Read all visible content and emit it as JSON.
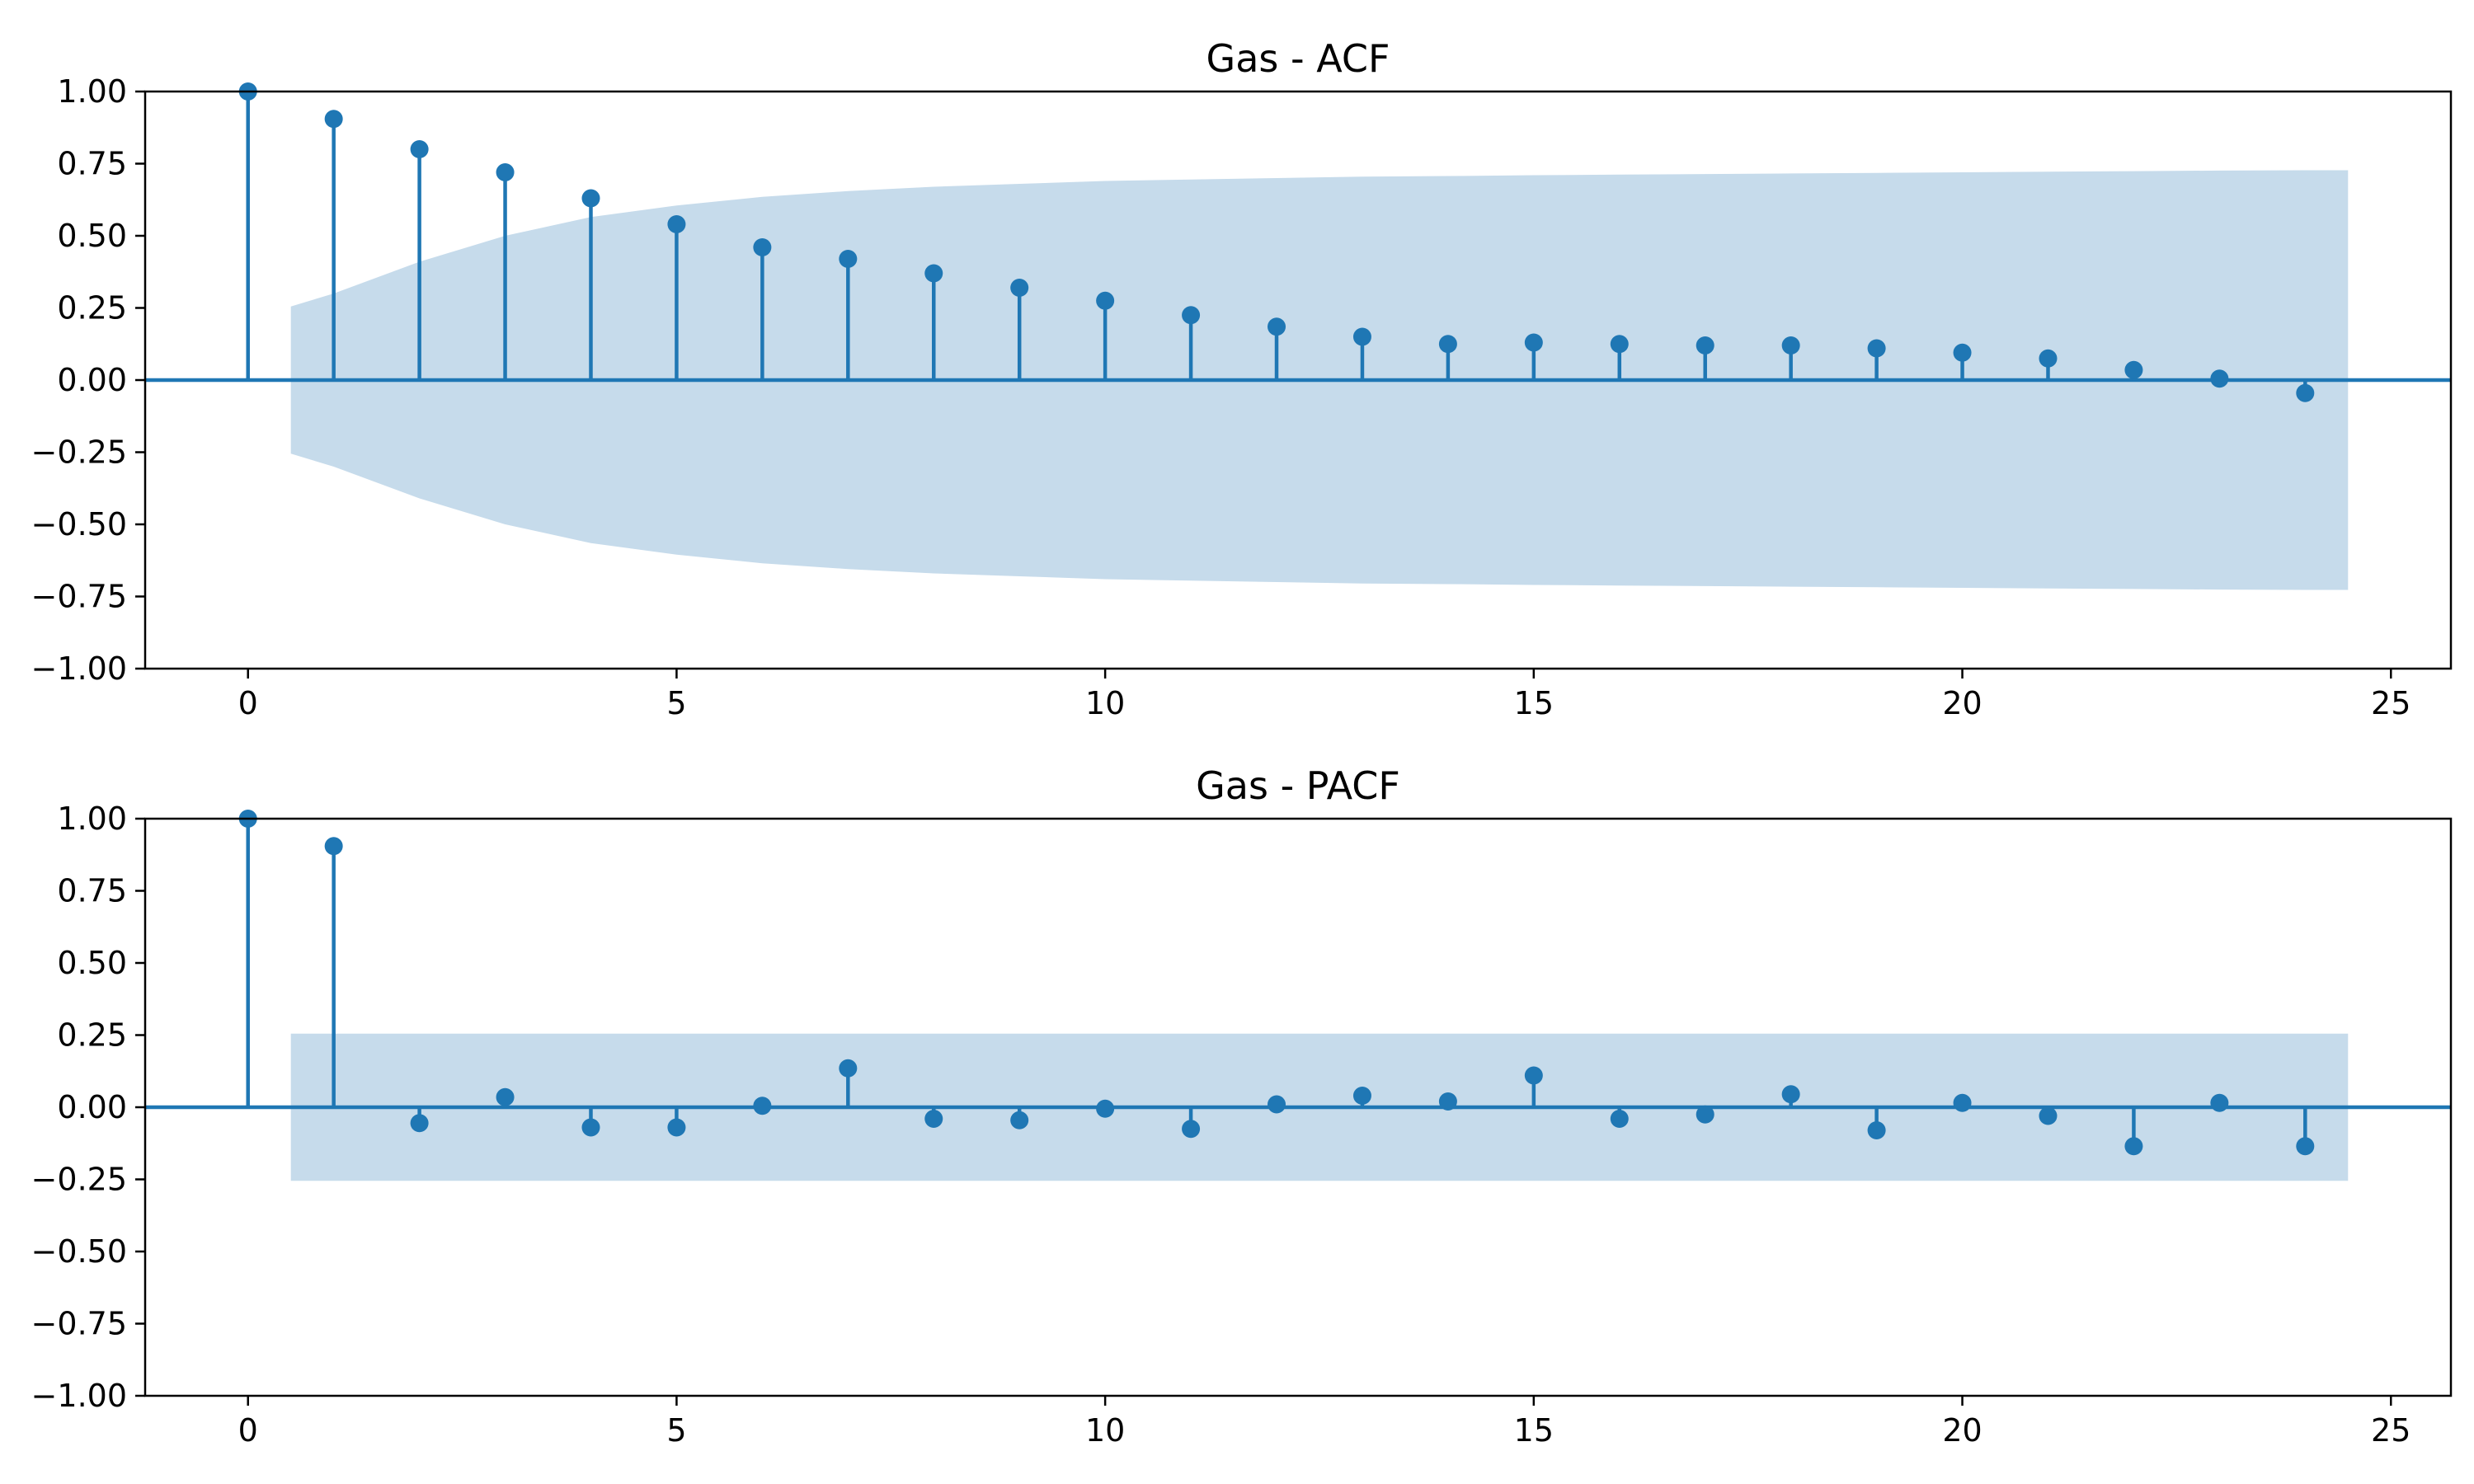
{
  "colors": {
    "series": "#1f77b4",
    "band": "#c6dbeb"
  },
  "chart_data": [
    {
      "type": "stem",
      "title": "Gas - ACF",
      "xlabel": "",
      "ylabel": "",
      "xlim": [
        -1.2,
        25.7
      ],
      "ylim": [
        -1.0,
        1.0
      ],
      "x_ticks": [
        0,
        5,
        10,
        15,
        20,
        25
      ],
      "y_ticks": [
        -1.0,
        -0.75,
        -0.5,
        -0.25,
        0.0,
        0.25,
        0.5,
        0.75,
        1.0
      ],
      "x_tick_labels": [
        "0",
        "5",
        "10",
        "15",
        "20",
        "25"
      ],
      "y_tick_labels": [
        "−1.00",
        "−0.75",
        "−0.50",
        "−0.25",
        "0.00",
        "0.25",
        "0.50",
        "0.75",
        "1.00"
      ],
      "grid": false,
      "lags": [
        0,
        1,
        2,
        3,
        4,
        5,
        6,
        7,
        8,
        9,
        10,
        11,
        12,
        13,
        14,
        15,
        16,
        17,
        18,
        19,
        20,
        21,
        22,
        23,
        24
      ],
      "values": [
        1.0,
        0.905,
        0.8,
        0.72,
        0.63,
        0.54,
        0.46,
        0.42,
        0.37,
        0.32,
        0.275,
        0.225,
        0.185,
        0.15,
        0.125,
        0.13,
        0.125,
        0.12,
        0.12,
        0.11,
        0.095,
        0.075,
        0.035,
        0.005,
        -0.045
      ],
      "confidence_band": {
        "lags": [
          0.5,
          1,
          2,
          3,
          4,
          5,
          6,
          7,
          8,
          9,
          10,
          11,
          12,
          13,
          14,
          15,
          16,
          17,
          18,
          19,
          20,
          21,
          22,
          23,
          24,
          24.5
        ],
        "upper": [
          0.255,
          0.3,
          0.41,
          0.5,
          0.565,
          0.605,
          0.635,
          0.655,
          0.67,
          0.68,
          0.69,
          0.695,
          0.7,
          0.705,
          0.707,
          0.71,
          0.712,
          0.714,
          0.716,
          0.718,
          0.72,
          0.722,
          0.724,
          0.726,
          0.727,
          0.727
        ]
      }
    },
    {
      "type": "stem",
      "title": "Gas - PACF",
      "xlabel": "",
      "ylabel": "",
      "xlim": [
        -1.2,
        25.7
      ],
      "ylim": [
        -1.0,
        1.0
      ],
      "x_ticks": [
        0,
        5,
        10,
        15,
        20,
        25
      ],
      "y_ticks": [
        -1.0,
        -0.75,
        -0.5,
        -0.25,
        0.0,
        0.25,
        0.5,
        0.75,
        1.0
      ],
      "x_tick_labels": [
        "0",
        "5",
        "10",
        "15",
        "20",
        "25"
      ],
      "y_tick_labels": [
        "−1.00",
        "−0.75",
        "−0.50",
        "−0.25",
        "0.00",
        "0.25",
        "0.50",
        "0.75",
        "1.00"
      ],
      "grid": false,
      "lags": [
        0,
        1,
        2,
        3,
        4,
        5,
        6,
        7,
        8,
        9,
        10,
        11,
        12,
        13,
        14,
        15,
        16,
        17,
        18,
        19,
        20,
        21,
        22,
        23,
        24
      ],
      "values": [
        1.0,
        0.905,
        -0.055,
        0.035,
        -0.07,
        -0.07,
        0.005,
        0.135,
        -0.04,
        -0.045,
        -0.005,
        -0.075,
        0.01,
        0.04,
        0.02,
        0.11,
        -0.04,
        -0.025,
        0.045,
        -0.08,
        0.015,
        -0.03,
        -0.135,
        0.015,
        -0.135
      ],
      "confidence_band": {
        "lags": [
          0.5,
          24.5
        ],
        "upper": [
          0.255,
          0.255
        ]
      }
    }
  ]
}
